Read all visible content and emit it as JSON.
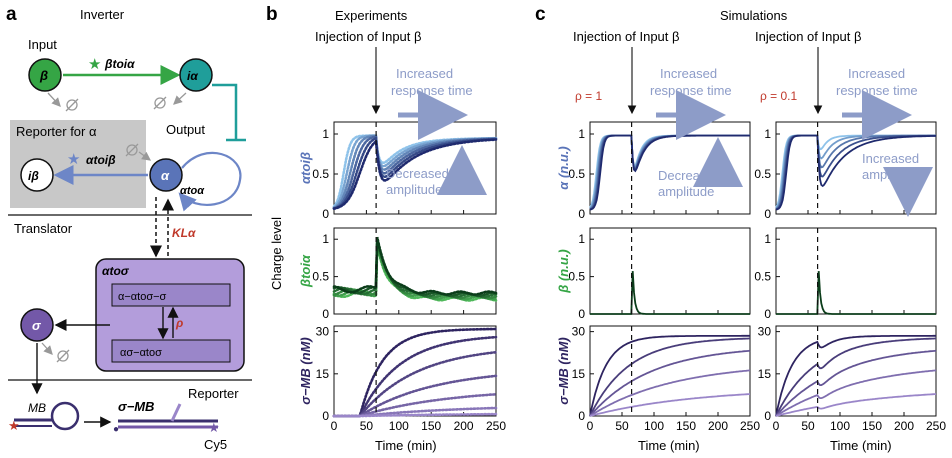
{
  "panels": {
    "a": "a",
    "b": "b",
    "c": "c"
  },
  "a": {
    "inverter": "Inverter",
    "input": "Input",
    "beta": "β",
    "i_alpha": "iα",
    "beta_to_ialpha": "βtoiα",
    "output": "Output",
    "reporter_for": "Reporter for α",
    "i_beta": "iβ",
    "alpha_to_ibeta": "αtoiβ",
    "alpha": "α",
    "alpha_to_alpha": "αtoα",
    "translator": "Translator",
    "k_l_alpha": "KLα",
    "alpha_to_sigma": "αtoσ",
    "complex1": "α−αtoσ−σ",
    "complex2": "ασ−αtoσ",
    "rho": "ρ",
    "sigma": "σ",
    "reporter": "Reporter",
    "mb": "MB",
    "sigma_mb": "σ−MB",
    "cy5": "Cy5"
  },
  "b": {
    "title1": "Experiments",
    "title2": "Injection of Input β",
    "increased_response_time": "Increased response time",
    "decreased_amplitude": "Decreased amplitude",
    "ylabel_top": "αtoiβ",
    "ylabel_mid": "βtoiα",
    "ylabel_bot": "σ−MB (nM)",
    "charge_level": "Charge level",
    "xlabel": "Time (min)"
  },
  "c": {
    "title": "Simulations",
    "injection1": "Injection of Input β",
    "injection2": "Injection of Input β",
    "rho1": "ρ = 1",
    "rho2": "ρ = 0.1",
    "increased_response_time": "Increased response time",
    "decreased_amplitude": "Decreased amplitude",
    "increased_amplitude": "Increased amplitude",
    "ylabel_top": "α (n.u.)",
    "ylabel_mid": "β (n.u.)",
    "ylabel_bot": "σ−MB (nM)",
    "xlabel": "Time (min)"
  },
  "axes": {
    "xticks": [
      "0",
      "50",
      "100",
      "150",
      "200",
      "250"
    ],
    "yticks_charge": [
      "0",
      "0.5",
      "1"
    ],
    "yticks_conc": [
      "0",
      "15",
      "30"
    ]
  },
  "colors": {
    "blue_dark": "#1f2a6e",
    "blue_light": "#8fc3ea",
    "green_dark": "#0b3d1a",
    "green_light": "#4fb85a",
    "purple_dark": "#2e2460",
    "purple_light": "#9a86c9",
    "input_green": "#35a545",
    "teal": "#1f9e9a",
    "alpha_blue": "#5a74b8",
    "sigma_purple": "#7358a8",
    "box_purple": "#b39ddb",
    "reporter_gray": "#c8c8c8",
    "red": "#c0392b"
  }
}
